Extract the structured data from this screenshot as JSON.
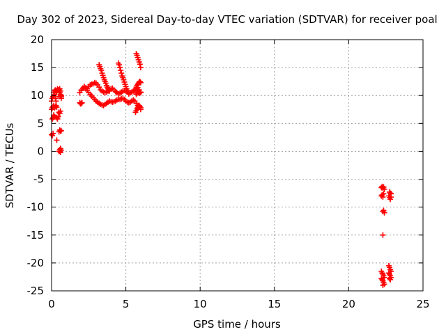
{
  "chart_data": {
    "type": "scatter",
    "title": "Day 302 of 2023, Sidereal Day-to-day VTEC variation (SDTVAR) for receiver poal",
    "xlabel": "GPS time / hours",
    "ylabel": "SDTVAR / TECUs",
    "xlim": [
      0,
      25
    ],
    "ylim": [
      -25,
      20
    ],
    "xticks": [
      "0",
      "5",
      "10",
      "15",
      "20",
      "25"
    ],
    "yticks": [
      "-25",
      "-20",
      "-15",
      "-10",
      "-5",
      "0",
      "5",
      "10",
      "15",
      "20"
    ],
    "grid": true,
    "marker": "plus",
    "series_color": "#ff0000",
    "series": [
      {
        "x": [
          0.0,
          0.05,
          0.1,
          0.15,
          0.2,
          0.25,
          0.3,
          0.0,
          0.05,
          0.1,
          0.15,
          0.2,
          0.0,
          0.05,
          0.1,
          0.15,
          0.05,
          0.1,
          0.15,
          0.2,
          0.25,
          0.3,
          0.35,
          0.15,
          0.2,
          0.25,
          0.3,
          0.35,
          0.4,
          0.3,
          0.35,
          0.4,
          0.45,
          0.5,
          0.55,
          0.6,
          0.65,
          0.35,
          0.4,
          0.45,
          0.5,
          0.55,
          0.6,
          0.65,
          0.5,
          0.55,
          0.6,
          0.65,
          0.5,
          0.55,
          0.6,
          0.5,
          0.55,
          0.6,
          0.65,
          0.5,
          0.55,
          0.6,
          0.65,
          0.35,
          0.55,
          0.6
        ],
        "y": [
          9.0,
          9.5,
          9.8,
          10.0,
          10.2,
          9.5,
          9.0,
          3.0,
          2.8,
          3.2,
          6.5,
          6.2,
          7.5,
          7.8,
          8.0,
          8.2,
          5.8,
          6.0,
          6.3,
          7.8,
          8.0,
          8.2,
          7.9,
          10.5,
          10.8,
          11.0,
          10.6,
          10.8,
          11.0,
          10.5,
          10.9,
          11.2,
          11.0,
          10.8,
          10.5,
          10.2,
          10.0,
          6.0,
          5.8,
          6.2,
          3.5,
          3.8,
          3.6,
          3.7,
          0.0,
          0.3,
          -0.2,
          0.2,
          7.0,
          6.8,
          7.2,
          11.0,
          11.2,
          10.8,
          9.5,
          9.8,
          10.5,
          10.0,
          9.8,
          2.0,
          0.0,
          0.5
        ]
      },
      {
        "x": [
          1.9,
          1.95,
          2.0,
          2.05,
          1.9,
          2.0,
          2.1,
          2.2,
          2.3,
          2.4,
          2.5,
          2.6,
          2.7,
          2.8,
          2.9,
          3.0,
          3.1,
          3.2,
          3.3,
          3.4,
          3.5,
          3.6,
          3.7,
          3.8,
          3.9,
          4.0,
          4.1,
          4.2,
          4.3,
          4.4,
          4.5,
          4.6,
          4.7,
          4.8,
          4.9,
          5.0,
          5.1,
          5.2,
          5.3,
          5.4,
          5.5,
          5.6,
          5.7,
          5.8,
          5.9,
          6.0,
          2.0,
          2.1,
          2.2,
          2.3,
          2.4,
          2.5,
          2.6,
          2.7,
          2.8,
          2.9,
          3.0,
          3.1,
          3.2,
          3.3,
          3.4,
          3.5,
          3.6,
          3.7,
          3.8,
          3.9,
          4.0,
          4.1,
          4.2,
          4.3,
          4.4,
          4.5,
          4.6,
          4.7,
          4.8,
          4.9,
          5.0,
          5.1,
          5.2,
          5.3,
          5.4,
          5.5,
          5.6,
          5.7,
          5.8,
          5.9,
          6.0,
          3.2,
          3.25,
          3.3,
          3.35,
          3.4,
          3.45,
          3.5,
          3.55,
          3.6,
          3.65,
          3.7,
          3.75,
          3.8,
          3.85,
          3.9,
          4.5,
          4.55,
          4.6,
          4.65,
          4.7,
          4.75,
          4.8,
          4.85,
          4.9,
          4.95,
          5.0,
          5.05,
          5.1,
          5.15,
          5.2,
          5.7,
          5.75,
          5.8,
          5.85,
          5.9,
          5.95,
          6.0,
          5.7,
          5.75,
          5.8,
          5.85,
          5.9,
          5.95,
          6.0,
          5.65,
          5.7,
          5.75,
          5.8,
          5.85,
          5.9,
          5.95,
          6.0,
          5.7,
          5.75,
          5.8,
          5.85,
          5.9,
          5.95,
          6.0
        ],
        "y": [
          8.7,
          8.5,
          8.6,
          8.7,
          10.5,
          10.9,
          11.3,
          11.6,
          11.4,
          11.2,
          11.6,
          11.9,
          12.0,
          12.1,
          12.3,
          12.2,
          11.9,
          11.5,
          11.0,
          10.8,
          10.6,
          10.5,
          10.6,
          10.8,
          11.0,
          11.2,
          11.3,
          11.0,
          10.7,
          10.5,
          10.3,
          10.4,
          10.6,
          10.8,
          10.9,
          10.8,
          10.6,
          10.4,
          10.5,
          10.6,
          10.8,
          11.0,
          11.2,
          11.4,
          11.0,
          10.6,
          11.0,
          11.3,
          11.5,
          11.2,
          10.9,
          10.5,
          10.2,
          9.9,
          9.6,
          9.3,
          9.0,
          8.8,
          8.6,
          8.4,
          8.3,
          8.2,
          8.4,
          8.6,
          8.8,
          9.0,
          8.9,
          8.8,
          8.9,
          9.0,
          9.2,
          9.3,
          9.3,
          9.4,
          9.5,
          9.3,
          9.0,
          8.8,
          8.7,
          8.8,
          9.0,
          9.2,
          9.0,
          8.6,
          8.2,
          7.9,
          7.5,
          15.5,
          15.2,
          14.8,
          14.5,
          14.0,
          13.6,
          13.2,
          12.8,
          12.5,
          12.2,
          11.8,
          11.5,
          11.2,
          11.0,
          10.8,
          15.8,
          15.5,
          15.0,
          14.5,
          14.0,
          13.5,
          13.2,
          12.8,
          12.4,
          12.0,
          11.6,
          11.2,
          10.9,
          10.6,
          10.3,
          17.5,
          17.2,
          16.8,
          16.4,
          16.0,
          15.6,
          15.0,
          11.5,
          11.8,
          12.0,
          12.2,
          12.4,
          12.5,
          12.3,
          7.0,
          7.3,
          7.6,
          7.8,
          8.0,
          8.2,
          8.0,
          7.8,
          10.2,
          10.4,
          10.6,
          10.5,
          10.4,
          10.6,
          10.5
        ]
      },
      {
        "x": [
          22.2,
          22.25,
          22.3,
          22.35,
          22.4,
          22.2,
          22.25,
          22.3,
          22.35,
          22.3,
          22.35,
          22.4,
          22.3,
          22.2,
          22.25,
          22.3,
          22.35,
          22.4,
          22.2,
          22.25,
          22.3,
          22.35,
          22.4,
          22.3,
          22.75,
          22.8,
          22.85,
          22.7,
          22.75,
          22.8,
          22.85,
          22.7,
          22.75,
          22.8,
          22.85,
          22.7,
          22.75,
          22.8,
          22.85,
          22.75,
          22.8
        ],
        "y": [
          -6.5,
          -6.3,
          -6.6,
          -6.4,
          -6.8,
          -8.0,
          -7.8,
          -8.2,
          -7.6,
          -10.8,
          -10.6,
          -11.0,
          -15.0,
          -21.5,
          -21.8,
          -22.0,
          -22.3,
          -22.6,
          -22.8,
          -23.0,
          -23.2,
          -23.5,
          -23.8,
          -24.0,
          -7.3,
          -7.5,
          -7.6,
          -8.0,
          -8.3,
          -8.6,
          -8.2,
          -20.5,
          -20.8,
          -21.2,
          -21.5,
          -21.8,
          -22.0,
          -22.3,
          -22.6,
          -22.8,
          -23.0
        ]
      }
    ]
  }
}
